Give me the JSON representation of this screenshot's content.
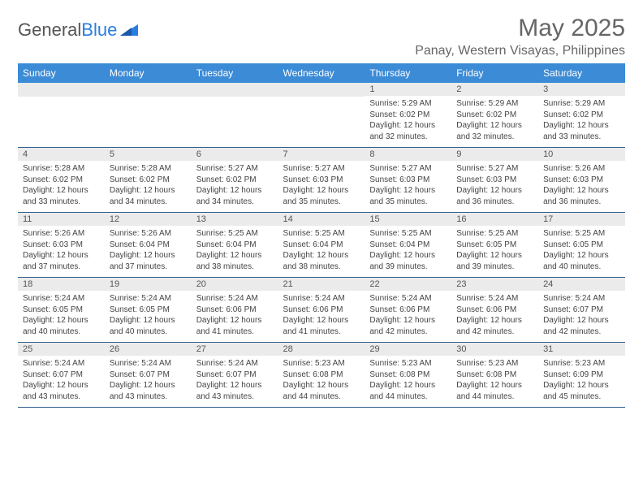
{
  "logo": {
    "text1": "General",
    "text2": "Blue"
  },
  "title": "May 2025",
  "location": "Panay, Western Visayas, Philippines",
  "colors": {
    "header_bg": "#3b8bd6",
    "header_text": "#ffffff",
    "daynum_bg": "#ebebeb",
    "border": "#2f5e8c",
    "logo_blue": "#2a7de1",
    "text_gray": "#666666"
  },
  "day_headers": [
    "Sunday",
    "Monday",
    "Tuesday",
    "Wednesday",
    "Thursday",
    "Friday",
    "Saturday"
  ],
  "weeks": [
    [
      null,
      null,
      null,
      null,
      {
        "n": "1",
        "sr": "5:29 AM",
        "ss": "6:02 PM",
        "dl": "12 hours and 32 minutes."
      },
      {
        "n": "2",
        "sr": "5:29 AM",
        "ss": "6:02 PM",
        "dl": "12 hours and 32 minutes."
      },
      {
        "n": "3",
        "sr": "5:29 AM",
        "ss": "6:02 PM",
        "dl": "12 hours and 33 minutes."
      }
    ],
    [
      {
        "n": "4",
        "sr": "5:28 AM",
        "ss": "6:02 PM",
        "dl": "12 hours and 33 minutes."
      },
      {
        "n": "5",
        "sr": "5:28 AM",
        "ss": "6:02 PM",
        "dl": "12 hours and 34 minutes."
      },
      {
        "n": "6",
        "sr": "5:27 AM",
        "ss": "6:02 PM",
        "dl": "12 hours and 34 minutes."
      },
      {
        "n": "7",
        "sr": "5:27 AM",
        "ss": "6:03 PM",
        "dl": "12 hours and 35 minutes."
      },
      {
        "n": "8",
        "sr": "5:27 AM",
        "ss": "6:03 PM",
        "dl": "12 hours and 35 minutes."
      },
      {
        "n": "9",
        "sr": "5:27 AM",
        "ss": "6:03 PM",
        "dl": "12 hours and 36 minutes."
      },
      {
        "n": "10",
        "sr": "5:26 AM",
        "ss": "6:03 PM",
        "dl": "12 hours and 36 minutes."
      }
    ],
    [
      {
        "n": "11",
        "sr": "5:26 AM",
        "ss": "6:03 PM",
        "dl": "12 hours and 37 minutes."
      },
      {
        "n": "12",
        "sr": "5:26 AM",
        "ss": "6:04 PM",
        "dl": "12 hours and 37 minutes."
      },
      {
        "n": "13",
        "sr": "5:25 AM",
        "ss": "6:04 PM",
        "dl": "12 hours and 38 minutes."
      },
      {
        "n": "14",
        "sr": "5:25 AM",
        "ss": "6:04 PM",
        "dl": "12 hours and 38 minutes."
      },
      {
        "n": "15",
        "sr": "5:25 AM",
        "ss": "6:04 PM",
        "dl": "12 hours and 39 minutes."
      },
      {
        "n": "16",
        "sr": "5:25 AM",
        "ss": "6:05 PM",
        "dl": "12 hours and 39 minutes."
      },
      {
        "n": "17",
        "sr": "5:25 AM",
        "ss": "6:05 PM",
        "dl": "12 hours and 40 minutes."
      }
    ],
    [
      {
        "n": "18",
        "sr": "5:24 AM",
        "ss": "6:05 PM",
        "dl": "12 hours and 40 minutes."
      },
      {
        "n": "19",
        "sr": "5:24 AM",
        "ss": "6:05 PM",
        "dl": "12 hours and 40 minutes."
      },
      {
        "n": "20",
        "sr": "5:24 AM",
        "ss": "6:06 PM",
        "dl": "12 hours and 41 minutes."
      },
      {
        "n": "21",
        "sr": "5:24 AM",
        "ss": "6:06 PM",
        "dl": "12 hours and 41 minutes."
      },
      {
        "n": "22",
        "sr": "5:24 AM",
        "ss": "6:06 PM",
        "dl": "12 hours and 42 minutes."
      },
      {
        "n": "23",
        "sr": "5:24 AM",
        "ss": "6:06 PM",
        "dl": "12 hours and 42 minutes."
      },
      {
        "n": "24",
        "sr": "5:24 AM",
        "ss": "6:07 PM",
        "dl": "12 hours and 42 minutes."
      }
    ],
    [
      {
        "n": "25",
        "sr": "5:24 AM",
        "ss": "6:07 PM",
        "dl": "12 hours and 43 minutes."
      },
      {
        "n": "26",
        "sr": "5:24 AM",
        "ss": "6:07 PM",
        "dl": "12 hours and 43 minutes."
      },
      {
        "n": "27",
        "sr": "5:24 AM",
        "ss": "6:07 PM",
        "dl": "12 hours and 43 minutes."
      },
      {
        "n": "28",
        "sr": "5:23 AM",
        "ss": "6:08 PM",
        "dl": "12 hours and 44 minutes."
      },
      {
        "n": "29",
        "sr": "5:23 AM",
        "ss": "6:08 PM",
        "dl": "12 hours and 44 minutes."
      },
      {
        "n": "30",
        "sr": "5:23 AM",
        "ss": "6:08 PM",
        "dl": "12 hours and 44 minutes."
      },
      {
        "n": "31",
        "sr": "5:23 AM",
        "ss": "6:09 PM",
        "dl": "12 hours and 45 minutes."
      }
    ]
  ],
  "labels": {
    "sunrise": "Sunrise: ",
    "sunset": "Sunset: ",
    "daylight": "Daylight: "
  }
}
